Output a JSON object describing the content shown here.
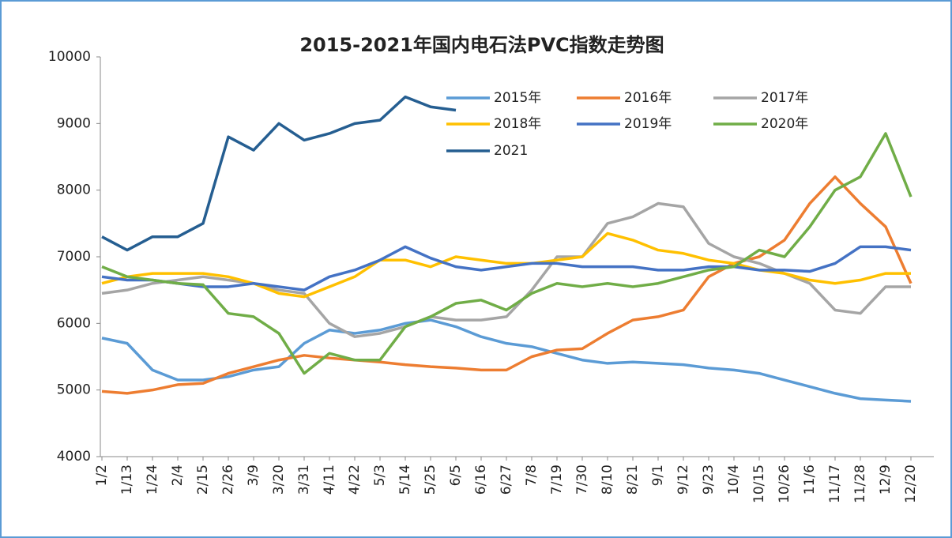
{
  "chart_data": {
    "type": "line",
    "title": "2015-2021年国内电石法PVC指数走势图",
    "categories": [
      "1/2",
      "1/13",
      "1/24",
      "2/4",
      "2/15",
      "2/26",
      "3/9",
      "3/20",
      "3/31",
      "4/11",
      "4/22",
      "5/3",
      "5/14",
      "5/25",
      "6/5",
      "6/16",
      "6/27",
      "7/8",
      "7/19",
      "7/30",
      "8/10",
      "8/21",
      "9/1",
      "9/12",
      "9/23",
      "10/4",
      "10/15",
      "10/26",
      "11/6",
      "11/17",
      "11/28",
      "12/9",
      "12/20"
    ],
    "series": [
      {
        "name": "2015年",
        "color": "#5b9bd5",
        "values": [
          5780,
          5700,
          5300,
          5150,
          5150,
          5200,
          5300,
          5350,
          5700,
          5900,
          5850,
          5900,
          6000,
          6050,
          5950,
          5800,
          5700,
          5650,
          5550,
          5450,
          5400,
          5420,
          5400,
          5380,
          5330,
          5300,
          5250,
          5150,
          5050,
          4950,
          4870,
          4850,
          4830
        ]
      },
      {
        "name": "2016年",
        "color": "#ed7d31",
        "values": [
          4980,
          4950,
          5000,
          5080,
          5100,
          5250,
          5350,
          5450,
          5520,
          5480,
          5450,
          5420,
          5380,
          5350,
          5330,
          5300,
          5300,
          5500,
          5600,
          5620,
          5850,
          6050,
          6100,
          6200,
          6700,
          6900,
          7000,
          7250,
          7800,
          8200,
          7800,
          7450,
          6600
        ]
      },
      {
        "name": "2017年",
        "color": "#a5a5a5",
        "values": [
          6450,
          6500,
          6600,
          6650,
          6700,
          6650,
          6600,
          6500,
          6450,
          6000,
          5800,
          5850,
          5950,
          6100,
          6050,
          6050,
          6100,
          6500,
          7000,
          7000,
          7500,
          7600,
          7800,
          7750,
          7200,
          7000,
          6900,
          6750,
          6600,
          6200,
          6150,
          6550,
          6550
        ]
      },
      {
        "name": "2018年",
        "color": "#ffc000",
        "values": [
          6600,
          6700,
          6750,
          6750,
          6750,
          6700,
          6600,
          6450,
          6400,
          6550,
          6700,
          6950,
          6950,
          6850,
          7000,
          6950,
          6900,
          6900,
          6950,
          7000,
          7350,
          7250,
          7100,
          7050,
          6950,
          6900,
          6800,
          6750,
          6650,
          6600,
          6650,
          6750,
          6750
        ]
      },
      {
        "name": "2019年",
        "color": "#4472c4",
        "values": [
          6700,
          6650,
          6650,
          6600,
          6550,
          6550,
          6600,
          6550,
          6500,
          6700,
          6800,
          6950,
          7150,
          6980,
          6850,
          6800,
          6850,
          6900,
          6900,
          6850,
          6850,
          6850,
          6800,
          6800,
          6850,
          6850,
          6800,
          6800,
          6780,
          6900,
          7150,
          7150,
          7100
        ]
      },
      {
        "name": "2020年",
        "color": "#70ad47",
        "values": [
          6850,
          6700,
          6650,
          6600,
          6580,
          6150,
          6100,
          5850,
          5250,
          5550,
          5450,
          5450,
          5950,
          6100,
          6300,
          6350,
          6200,
          6450,
          6600,
          6550,
          6600,
          6550,
          6600,
          6700,
          6800,
          6850,
          7100,
          7000,
          7450,
          8000,
          8200,
          8850,
          7900
        ]
      },
      {
        "name": "2021",
        "color": "#255e91",
        "values": [
          7300,
          7100,
          7300,
          7300,
          7500,
          8800,
          8600,
          9000,
          8750,
          8850,
          9000,
          9050,
          9400,
          9250,
          9200,
          null,
          null,
          null,
          null,
          null,
          null,
          null,
          null,
          null,
          null,
          null,
          null,
          null,
          null,
          null,
          null,
          null,
          null
        ]
      }
    ],
    "ylim": [
      4000,
      10000
    ],
    "yticks": [
      4000,
      5000,
      6000,
      7000,
      8000,
      9000,
      10000
    ]
  }
}
